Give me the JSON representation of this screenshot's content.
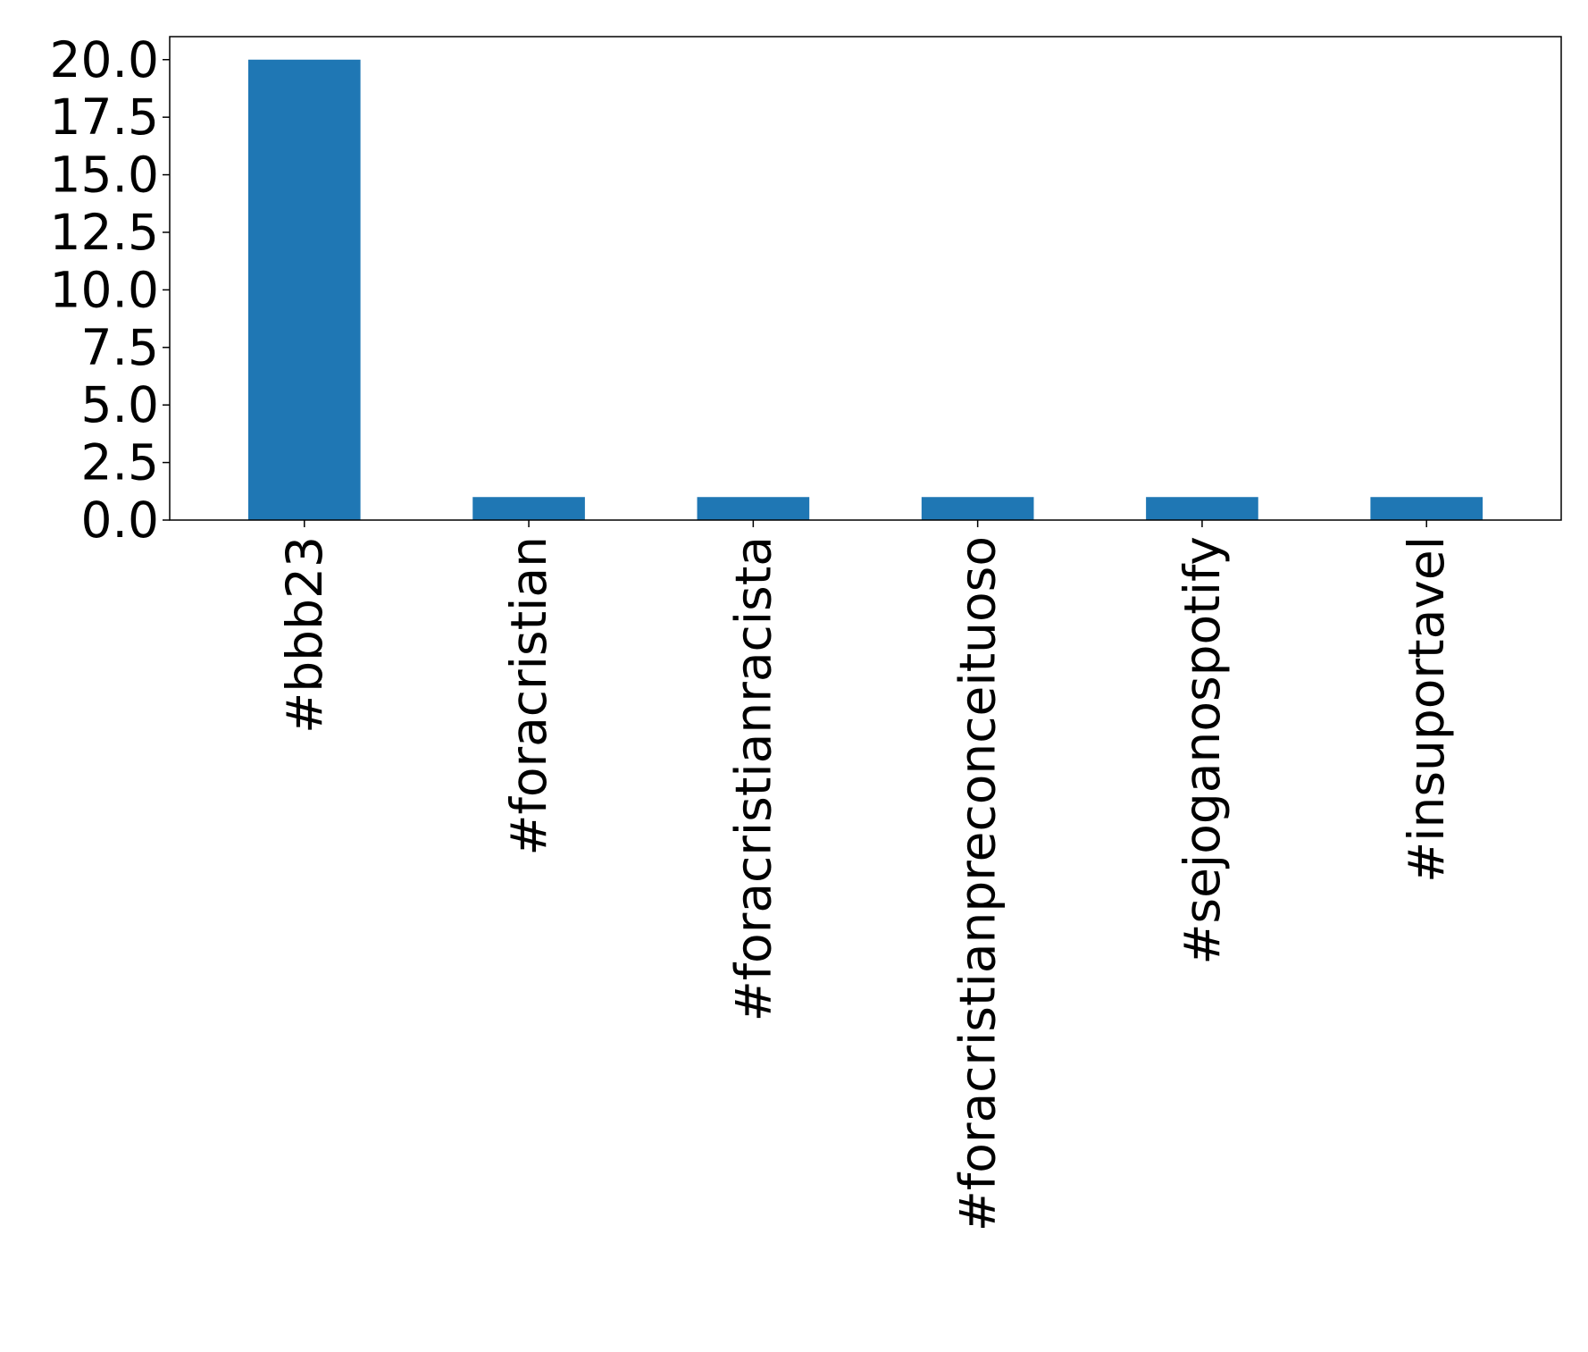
{
  "chart_data": {
    "type": "bar",
    "title": "",
    "xlabel": "",
    "ylabel": "",
    "categories": [
      "#bbb23",
      "#foracristian",
      "#foracristianracista",
      "#foracristianpreconceituoso",
      "#sejoganospotify",
      "#insuportavel"
    ],
    "values": [
      20,
      1,
      1,
      1,
      1,
      1
    ],
    "ylim": [
      0,
      21
    ],
    "yticks": [
      "0.0",
      "2.5",
      "5.0",
      "7.5",
      "10.0",
      "12.5",
      "15.0",
      "17.5",
      "20.0"
    ],
    "bar_color": "#1f77b4",
    "grid": false,
    "legend": "none"
  }
}
